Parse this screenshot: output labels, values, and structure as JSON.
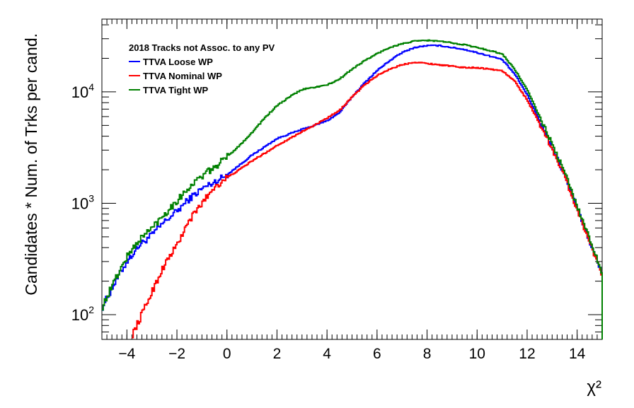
{
  "chart_data": {
    "type": "line",
    "title": "",
    "xlabel": "χ²",
    "ylabel": "Candidates * Num. of Trks per cand.",
    "xlim": [
      -5,
      15
    ],
    "ylim": [
      60,
      45000
    ],
    "y_scale": "log",
    "grid": false,
    "legend_placement": "top-left",
    "legend_header": "2018 Tracks not Assoc. to any PV",
    "x_ticks": [
      -4,
      -2,
      0,
      2,
      4,
      6,
      8,
      10,
      12,
      14
    ],
    "x_tick_labels": [
      "−4",
      "−2",
      "0",
      "2",
      "4",
      "6",
      "8",
      "10",
      "12",
      "14"
    ],
    "y_ticks": [
      {
        "value": 100,
        "base": "10",
        "exp": "2"
      },
      {
        "value": 1000,
        "base": "10",
        "exp": "3"
      },
      {
        "value": 10000,
        "base": "10",
        "exp": "4"
      }
    ],
    "series": [
      {
        "name": "TTVA Loose WP",
        "color": "#0000ff",
        "x": [
          -5,
          -4.5,
          -4,
          -3.5,
          -3,
          -2.5,
          -2,
          -1.5,
          -1,
          -0.5,
          0,
          0.5,
          1,
          1.5,
          2,
          2.5,
          3,
          3.5,
          4,
          4.5,
          5,
          5.5,
          6,
          6.5,
          7,
          7.5,
          8,
          8.5,
          9,
          9.5,
          10,
          10.5,
          11,
          11.5,
          12,
          12.5,
          13,
          13.5,
          14,
          14.5,
          15
        ],
        "y": [
          115,
          190,
          300,
          420,
          520,
          680,
          850,
          1100,
          1350,
          1550,
          1800,
          2200,
          2700,
          3200,
          3800,
          4200,
          4600,
          5000,
          5500,
          6500,
          9000,
          12000,
          15500,
          19000,
          22500,
          25000,
          26000,
          26000,
          25000,
          24000,
          22500,
          21000,
          19500,
          14500,
          9500,
          5500,
          3200,
          1800,
          900,
          450,
          230
        ]
      },
      {
        "name": "TTVA Nominal WP",
        "color": "#ff0000",
        "x": [
          -3.8,
          -3.5,
          -3,
          -2.5,
          -2,
          -1.5,
          -1,
          -0.5,
          0,
          0.5,
          1,
          1.5,
          2,
          2.5,
          3,
          3.5,
          4,
          4.5,
          5,
          5.5,
          6,
          6.5,
          7,
          7.5,
          8,
          8.5,
          9,
          9.5,
          10,
          10.5,
          11,
          11.5,
          12,
          12.5,
          13,
          13.5,
          14,
          14.5,
          15
        ],
        "y": [
          65,
          90,
          160,
          280,
          420,
          700,
          1000,
          1400,
          1700,
          2000,
          2400,
          2800,
          3300,
          3800,
          4400,
          5000,
          5800,
          6800,
          9000,
          11500,
          14000,
          16000,
          17500,
          18500,
          18000,
          17500,
          17000,
          16500,
          16500,
          16000,
          15500,
          12500,
          8500,
          5200,
          3100,
          1750,
          880,
          450,
          230
        ]
      },
      {
        "name": "TTVA Tight WP",
        "color": "#008000",
        "x": [
          -5,
          -4.5,
          -4,
          -3.5,
          -3,
          -2.5,
          -2,
          -1.5,
          -1,
          -0.5,
          0,
          0.5,
          1,
          1.5,
          2,
          2.5,
          3,
          3.5,
          4,
          4.5,
          5,
          5.5,
          6,
          6.5,
          7,
          7.5,
          8,
          8.5,
          9,
          9.5,
          10,
          10.5,
          11,
          11.5,
          12,
          12.5,
          13,
          13.5,
          14,
          14.5,
          15
        ],
        "y": [
          115,
          200,
          330,
          470,
          600,
          800,
          1050,
          1400,
          1750,
          2100,
          2600,
          3300,
          4300,
          5800,
          7500,
          9000,
          10500,
          11000,
          11500,
          13000,
          16000,
          19000,
          22000,
          25000,
          27000,
          28500,
          29000,
          28500,
          27500,
          26500,
          25000,
          23500,
          22000,
          16000,
          10500,
          6000,
          3400,
          1900,
          950,
          480,
          240
        ]
      }
    ]
  }
}
